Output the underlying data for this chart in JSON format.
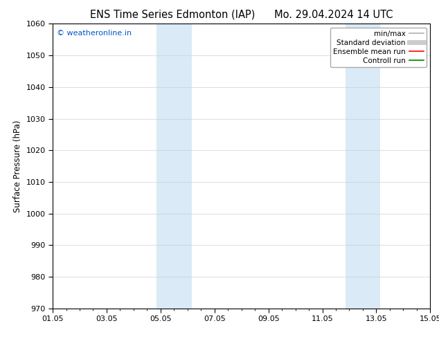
{
  "title": "ENS Time Series Edmonton (IAP)      Mo. 29.04.2024 14 UTC",
  "ylabel": "Surface Pressure (hPa)",
  "xlim": [
    0,
    14
  ],
  "ylim": [
    970,
    1060
  ],
  "yticks": [
    970,
    980,
    990,
    1000,
    1010,
    1020,
    1030,
    1040,
    1050,
    1060
  ],
  "xtick_labels": [
    "01.05",
    "03.05",
    "05.05",
    "07.05",
    "09.05",
    "11.05",
    "13.05",
    "15.05"
  ],
  "xtick_positions": [
    0,
    2,
    4,
    6,
    8,
    10,
    12,
    14
  ],
  "shaded_bands": [
    {
      "x_start": 3.85,
      "x_end": 5.15,
      "color": "#daeaf6"
    },
    {
      "x_start": 10.85,
      "x_end": 12.15,
      "color": "#daeaf6"
    }
  ],
  "watermark_text": "© weatheronline.in",
  "watermark_color": "#0055cc",
  "legend_entries": [
    {
      "label": "min/max",
      "color": "#b0b0b0",
      "lw": 1.2,
      "linestyle": "-"
    },
    {
      "label": "Standard deviation",
      "color": "#cccccc",
      "lw": 5,
      "linestyle": "-"
    },
    {
      "label": "Ensemble mean run",
      "color": "red",
      "lw": 1.2,
      "linestyle": "-"
    },
    {
      "label": "Controll run",
      "color": "green",
      "lw": 1.2,
      "linestyle": "-"
    }
  ],
  "bg_color": "#ffffff",
  "plot_bg_color": "#ffffff",
  "title_fontsize": 10.5,
  "ylabel_fontsize": 8.5,
  "tick_fontsize": 8,
  "watermark_fontsize": 8,
  "legend_fontsize": 7.5
}
